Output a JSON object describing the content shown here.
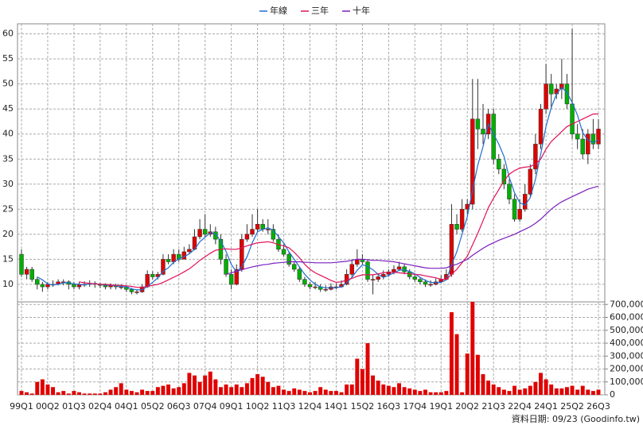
{
  "chart_data": [
    {
      "type": "candlestick",
      "ylim": [
        6.5,
        62
      ],
      "yticks": [
        10,
        15,
        20,
        25,
        30,
        35,
        40,
        45,
        50,
        55,
        60
      ],
      "grid": true,
      "legend_position": "top",
      "up_color": "#e00000",
      "down_color": "#00b000",
      "open": [
        16,
        12,
        13,
        11,
        10,
        9.5,
        10,
        10,
        10.5,
        10.5,
        10,
        9.5,
        10,
        10,
        10.2,
        10,
        9.8,
        9.5,
        9.8,
        9.5,
        9.5,
        9,
        8.5,
        8.5,
        9.5,
        12,
        11.5,
        12,
        15,
        14.5,
        16,
        15,
        16.5,
        17,
        19.5,
        21,
        20,
        20.5,
        19,
        15,
        12,
        10,
        13,
        19,
        20,
        21,
        22,
        21,
        21,
        19,
        17,
        16,
        14,
        13,
        11,
        10,
        9.5,
        9.5,
        9,
        9,
        9.5,
        9.5,
        10,
        12,
        14,
        15,
        14.5,
        11,
        11,
        11.5,
        12,
        12.5,
        13,
        13.5,
        12.5,
        11.5,
        11,
        10.5,
        10,
        10,
        10.5,
        11,
        12,
        22,
        21,
        25,
        26,
        43,
        41,
        40,
        44,
        35,
        33,
        30,
        27,
        23,
        25,
        28,
        33,
        38,
        45,
        50,
        48,
        49,
        50,
        46,
        40,
        39,
        36,
        40,
        38
      ],
      "high": [
        17,
        13.5,
        13.5,
        11.5,
        10.5,
        10.5,
        10.8,
        11,
        11,
        10.8,
        10.5,
        10.5,
        10.6,
        10.8,
        10.6,
        10.3,
        10.2,
        10.2,
        10.1,
        10,
        9.8,
        9.3,
        9,
        10,
        12.8,
        12.6,
        12.5,
        16,
        16,
        17,
        17,
        17.5,
        18,
        21,
        23,
        24,
        22,
        21.5,
        20,
        16,
        13,
        14,
        20,
        22,
        24,
        25,
        23,
        23,
        22,
        20,
        18,
        16.5,
        14.5,
        13.5,
        11.5,
        10.5,
        10.5,
        10,
        9.8,
        10.2,
        10.2,
        10.8,
        13,
        15,
        17,
        16,
        15,
        12,
        12,
        12.8,
        13,
        13.8,
        14.5,
        14,
        13,
        12,
        11.5,
        11,
        10.8,
        11.2,
        11.8,
        13,
        26,
        24,
        27,
        27,
        51,
        51,
        46,
        45,
        45,
        36,
        34,
        31,
        28,
        27,
        30,
        34,
        40,
        46,
        54,
        52,
        50,
        55,
        52,
        61,
        42,
        41,
        41,
        43,
        43
      ],
      "low": [
        11.5,
        11,
        10.5,
        9,
        8.5,
        9,
        9.5,
        9.8,
        9.8,
        9,
        9,
        9,
        9.5,
        9.5,
        9.3,
        9.3,
        9,
        9,
        9,
        9,
        8.5,
        8,
        8,
        8.3,
        9.3,
        11,
        11,
        11.8,
        14,
        14,
        14.5,
        15,
        16,
        16.8,
        19,
        19.5,
        19.5,
        18,
        14,
        11.5,
        9,
        9.8,
        12.5,
        18.5,
        19.5,
        20.5,
        20.5,
        20,
        18.5,
        16.5,
        15.5,
        13.5,
        12.5,
        10.5,
        9.5,
        9,
        9,
        8.5,
        8.5,
        8.8,
        9,
        9.3,
        9.8,
        11.5,
        13.5,
        14,
        10.5,
        8,
        10.5,
        11,
        11.5,
        12,
        12.8,
        12,
        11,
        10.5,
        10,
        9.5,
        9.5,
        9.8,
        10.3,
        11.5,
        11.5,
        20,
        20.5,
        24,
        25,
        37,
        38,
        39,
        34,
        32,
        29,
        26,
        22.5,
        22.5,
        24.5,
        27.5,
        32,
        37,
        44,
        45,
        47,
        47,
        45,
        39,
        37,
        35,
        34,
        37,
        37
      ],
      "close": [
        12,
        13,
        11,
        10,
        9.5,
        10,
        10,
        10.5,
        10.5,
        10,
        9.5,
        10,
        10,
        10.2,
        10,
        9.8,
        9.5,
        9.8,
        9.5,
        9.5,
        9,
        8.5,
        8.5,
        9.5,
        12,
        11.5,
        12,
        15,
        14.5,
        16,
        15,
        16.5,
        17,
        19.5,
        21,
        20,
        20.5,
        19,
        15,
        12,
        10,
        13,
        19,
        20,
        21,
        22,
        21,
        21,
        19,
        17,
        16,
        14,
        13,
        11,
        10,
        9.5,
        9.5,
        9,
        9,
        9.5,
        9.5,
        10,
        12,
        14,
        15,
        14.5,
        11,
        11,
        11.5,
        12,
        12.5,
        13,
        13.5,
        12.5,
        11.5,
        11,
        10.5,
        10,
        10,
        10.5,
        11,
        12,
        22,
        21,
        25,
        26,
        43,
        41,
        40,
        44,
        35,
        33,
        30,
        27,
        23,
        25,
        28,
        33,
        38,
        45,
        50,
        48,
        49,
        50,
        46,
        40,
        39,
        36,
        40,
        38,
        41
      ],
      "series": [
        {
          "name": "年線",
          "color": "#1f6fd0",
          "values": [
            null,
            null,
            null,
            11.5,
            10.9,
            10.1,
            9.9,
            10,
            10.3,
            10.3,
            10.1,
            10,
            9.9,
            10.1,
            10.1,
            10,
            9.9,
            9.8,
            9.7,
            9.6,
            9.5,
            9.1,
            8.9,
            8.9,
            9.6,
            10.4,
            11.3,
            12.6,
            13.3,
            14.4,
            15.1,
            15.5,
            16.1,
            17,
            18.5,
            19.4,
            20.3,
            20.1,
            18.6,
            16.6,
            14,
            12.5,
            13.5,
            15.5,
            18.3,
            20.5,
            21,
            21.3,
            20.8,
            19.5,
            18.3,
            16.5,
            15,
            13.5,
            12,
            10.9,
            10,
            9.5,
            9.3,
            9.3,
            9.3,
            9.5,
            10.3,
            11.4,
            12.8,
            13.9,
            13.6,
            12.9,
            12,
            11.4,
            11.8,
            12.3,
            12.8,
            12.9,
            12.6,
            12.1,
            11.4,
            10.8,
            10.4,
            10.3,
            10.4,
            10.9,
            13.9,
            16.5,
            20,
            23.5,
            28.8,
            33.8,
            37.5,
            42,
            40,
            38,
            35.5,
            31.3,
            28.3,
            26.3,
            25.8,
            27.3,
            31,
            36,
            41.5,
            45.3,
            48,
            49.3,
            48.3,
            46.3,
            43.8,
            40.3,
            38.8,
            38.3,
            38.8
          ]
        },
        {
          "name": "三年",
          "color": "#e0105a",
          "values": [
            null,
            null,
            null,
            null,
            null,
            null,
            null,
            null,
            null,
            null,
            null,
            10.5,
            10.3,
            10.2,
            10.1,
            10,
            10,
            9.9,
            9.8,
            9.8,
            9.7,
            9.6,
            9.4,
            9.4,
            9.6,
            9.8,
            10,
            10.4,
            10.9,
            11.4,
            11.9,
            12.5,
            13.1,
            13.9,
            14.8,
            15.5,
            16.2,
            16.8,
            17,
            17.1,
            17,
            17,
            17.3,
            17.7,
            18,
            18.3,
            18.4,
            18.5,
            18.3,
            17.9,
            17.7,
            17.3,
            16.4,
            15.3,
            14,
            13,
            12.3,
            11.8,
            11.3,
            10.8,
            10.4,
            10.5,
            10.9,
            11.2,
            11.6,
            11.9,
            11.9,
            11.9,
            12.1,
            12.3,
            12.4,
            12.4,
            12.3,
            12.2,
            12.1,
            12,
            11.9,
            11.7,
            11.5,
            11.3,
            11,
            11,
            12,
            13,
            14.3,
            15.6,
            17.9,
            20.2,
            22.7,
            25.3,
            27.2,
            28.9,
            30.7,
            32,
            32.7,
            33.2,
            33.4,
            33.5,
            34,
            35,
            37,
            38.5,
            39.5,
            40.5,
            41.5,
            42,
            42.5,
            43,
            43.5,
            44,
            44
          ]
        },
        {
          "name": "十年",
          "color": "#7a1fc0",
          "values": [
            null,
            null,
            null,
            null,
            null,
            null,
            null,
            null,
            null,
            null,
            null,
            null,
            null,
            null,
            null,
            null,
            null,
            null,
            null,
            null,
            null,
            null,
            null,
            null,
            null,
            null,
            null,
            null,
            null,
            null,
            null,
            null,
            null,
            null,
            null,
            null,
            null,
            null,
            null,
            12,
            12.3,
            12.6,
            12.9,
            13.2,
            13.5,
            13.7,
            13.9,
            14,
            14.2,
            14.3,
            14.4,
            14.5,
            14.5,
            14.5,
            14.4,
            14.4,
            14.3,
            14.3,
            14.3,
            14.3,
            14.4,
            14.5,
            14.6,
            14.8,
            15,
            15,
            14.9,
            14.8,
            14.8,
            14.7,
            14.6,
            14.5,
            14.3,
            14.1,
            13.9,
            13.7,
            13.5,
            13.3,
            13.2,
            13.2,
            13.2,
            13.3,
            13.7,
            14,
            14.5,
            15,
            15.8,
            16.5,
            17.2,
            17.8,
            18.3,
            18.8,
            19.2,
            19.6,
            20,
            20.5,
            21,
            21.5,
            22.2,
            23,
            24,
            25,
            25.8,
            26.5,
            27,
            27.5,
            28,
            28.5,
            29,
            29.3,
            29.6
          ]
        }
      ]
    },
    {
      "type": "bar",
      "color": "#e00000",
      "grid": true,
      "ylim": [
        0,
        720000
      ],
      "yticks": [
        0,
        {
          "value": 100000,
          "label": "100,000"
        },
        {
          "value": 200000,
          "label": "200,000"
        },
        {
          "value": 300000,
          "label": "300,000"
        },
        {
          "value": 400000,
          "label": "400,000"
        },
        {
          "value": 500000,
          "label": "500,000"
        },
        {
          "value": 600000,
          "label": "600,000"
        },
        {
          "value": 700000,
          "label": "700,000"
        }
      ],
      "categories": [
        "99Q1",
        null,
        null,
        null,
        null,
        "00Q2",
        null,
        null,
        null,
        null,
        "01Q3",
        null,
        null,
        null,
        null,
        "02Q4",
        null,
        null,
        null,
        null,
        "04Q1",
        null,
        null,
        null,
        null,
        "05Q2",
        null,
        null,
        null,
        null,
        "06Q3",
        null,
        null,
        null,
        null,
        "07Q4",
        null,
        null,
        null,
        null,
        "09Q1",
        null,
        null,
        null,
        null,
        "10Q2",
        null,
        null,
        null,
        null,
        "11Q3",
        null,
        null,
        null,
        null,
        "12Q4",
        null,
        null,
        null,
        null,
        "14Q1",
        null,
        null,
        null,
        null,
        "15Q2",
        null,
        null,
        null,
        null,
        "16Q3",
        null,
        null,
        null,
        null,
        "17Q4",
        null,
        null,
        null,
        null,
        "19Q1",
        null,
        null,
        null,
        null,
        "20Q2",
        null,
        null,
        null,
        null,
        "21Q3",
        null,
        null,
        null,
        null,
        "22Q4",
        null,
        null,
        null,
        null,
        "24Q1",
        null,
        null,
        null,
        null,
        "25Q2",
        null,
        null,
        null,
        null,
        "26Q3"
      ],
      "values": [
        30000,
        20000,
        10000,
        100000,
        120000,
        80000,
        60000,
        20000,
        30000,
        10000,
        30000,
        20000,
        10000,
        10000,
        10000,
        10000,
        20000,
        40000,
        60000,
        90000,
        40000,
        30000,
        20000,
        40000,
        30000,
        30000,
        60000,
        70000,
        80000,
        50000,
        60000,
        90000,
        170000,
        150000,
        100000,
        150000,
        180000,
        120000,
        60000,
        80000,
        60000,
        80000,
        60000,
        90000,
        130000,
        160000,
        140000,
        100000,
        60000,
        70000,
        40000,
        30000,
        50000,
        40000,
        30000,
        20000,
        30000,
        60000,
        40000,
        30000,
        30000,
        20000,
        80000,
        80000,
        280000,
        200000,
        400000,
        150000,
        110000,
        80000,
        70000,
        60000,
        90000,
        60000,
        50000,
        40000,
        30000,
        40000,
        20000,
        20000,
        20000,
        30000,
        640000,
        470000,
        20000,
        320000,
        720000,
        310000,
        160000,
        110000,
        80000,
        60000,
        40000,
        30000,
        70000,
        40000,
        50000,
        70000,
        100000,
        170000,
        120000,
        80000,
        50000,
        50000,
        60000,
        70000,
        40000,
        70000,
        40000,
        30000,
        40000
      ],
      "footnote": "資料日期: 09/23 (Goodinfo.tw)"
    }
  ]
}
